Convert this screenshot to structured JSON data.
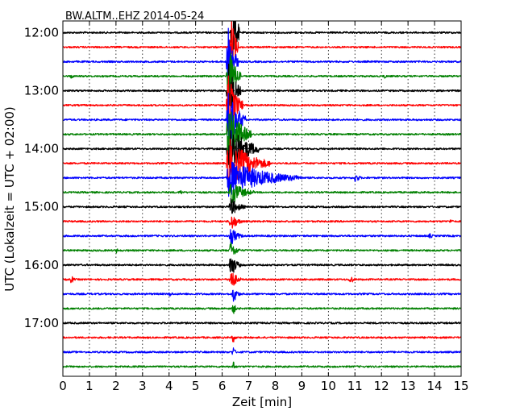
{
  "chart_data": {
    "type": "line",
    "title": "BW.ALTM..EHZ 2014-05-24",
    "xlabel": "Zeit  [min]",
    "ylabel": "UTC (Lokalzeit = UTC + 02:00)",
    "xlim": [
      0,
      15
    ],
    "x_ticks": [
      "0",
      "1",
      "2",
      "3",
      "4",
      "5",
      "6",
      "7",
      "8",
      "9",
      "10",
      "11",
      "12",
      "13",
      "14",
      "15"
    ],
    "y_ticks": [
      {
        "label": "12:00",
        "trace": 0
      },
      {
        "label": "13:00",
        "trace": 4
      },
      {
        "label": "14:00",
        "trace": 8
      },
      {
        "label": "15:00",
        "trace": 12
      },
      {
        "label": "16:00",
        "trace": 16
      },
      {
        "label": "17:00",
        "trace": 20
      }
    ],
    "grid": true,
    "trace_minutes": 15,
    "trace_count": 24,
    "trace_colors": [
      "#000000",
      "#ff0000",
      "#0000ff",
      "#008000"
    ],
    "series": [
      {
        "trace": 0,
        "events": [
          {
            "x": 6.35,
            "amp": 80,
            "width": 0.3
          }
        ]
      },
      {
        "trace": 1,
        "events": [
          {
            "x": 6.3,
            "amp": 60,
            "width": 0.3
          }
        ]
      },
      {
        "trace": 2,
        "events": [
          {
            "x": 6.2,
            "amp": 55,
            "width": 0.4
          }
        ]
      },
      {
        "trace": 3,
        "events": [
          {
            "x": 0.3,
            "amp": 5,
            "width": 0.15
          },
          {
            "x": 6.2,
            "amp": 50,
            "width": 0.5
          },
          {
            "x": 12.1,
            "amp": 5,
            "width": 0.15
          }
        ]
      },
      {
        "trace": 4,
        "events": [
          {
            "x": 6.2,
            "amp": 45,
            "width": 0.5
          }
        ]
      },
      {
        "trace": 5,
        "events": [
          {
            "x": 6.2,
            "amp": 45,
            "width": 0.6
          }
        ]
      },
      {
        "trace": 6,
        "events": [
          {
            "x": 6.2,
            "amp": 45,
            "width": 0.7
          }
        ]
      },
      {
        "trace": 7,
        "events": [
          {
            "x": 6.2,
            "amp": 45,
            "width": 0.9
          }
        ]
      },
      {
        "trace": 8,
        "events": [
          {
            "x": 6.2,
            "amp": 40,
            "width": 1.2
          }
        ]
      },
      {
        "trace": 9,
        "events": [
          {
            "x": 6.2,
            "amp": 35,
            "width": 1.6
          }
        ]
      },
      {
        "trace": 10,
        "events": [
          {
            "x": 6.2,
            "amp": 25,
            "width": 2.8
          },
          {
            "x": 11.0,
            "amp": 8,
            "width": 0.3
          }
        ]
      },
      {
        "trace": 11,
        "events": [
          {
            "x": 4.4,
            "amp": 5,
            "width": 0.2
          },
          {
            "x": 6.3,
            "amp": 18,
            "width": 0.9
          }
        ]
      },
      {
        "trace": 12,
        "events": [
          {
            "x": 6.3,
            "amp": 14,
            "width": 0.6
          }
        ]
      },
      {
        "trace": 13,
        "events": [
          {
            "x": 6.3,
            "amp": 14,
            "width": 0.5
          },
          {
            "x": 14.6,
            "amp": 5,
            "width": 0.15
          }
        ]
      },
      {
        "trace": 14,
        "events": [
          {
            "x": 6.3,
            "amp": 14,
            "width": 0.5
          },
          {
            "x": 13.8,
            "amp": 4,
            "width": 0.3
          }
        ]
      },
      {
        "trace": 15,
        "events": [
          {
            "x": 2.0,
            "amp": 5,
            "width": 0.15
          },
          {
            "x": 6.3,
            "amp": 14,
            "width": 0.4
          }
        ]
      },
      {
        "trace": 16,
        "events": [
          {
            "x": 6.3,
            "amp": 20,
            "width": 0.4
          }
        ]
      },
      {
        "trace": 17,
        "events": [
          {
            "x": 0.3,
            "amp": 7,
            "width": 0.2
          },
          {
            "x": 6.3,
            "amp": 18,
            "width": 0.4
          },
          {
            "x": 10.8,
            "amp": 7,
            "width": 0.3
          }
        ]
      },
      {
        "trace": 18,
        "events": [
          {
            "x": 4.0,
            "amp": 4,
            "width": 0.3
          },
          {
            "x": 6.4,
            "amp": 14,
            "width": 0.3
          }
        ]
      },
      {
        "trace": 19,
        "events": [
          {
            "x": 6.4,
            "amp": 10,
            "width": 0.2
          }
        ]
      },
      {
        "trace": 20,
        "events": [
          {
            "x": 6.4,
            "amp": 10,
            "width": 0.15
          }
        ]
      },
      {
        "trace": 21,
        "events": [
          {
            "x": 6.4,
            "amp": 10,
            "width": 0.15
          }
        ]
      },
      {
        "trace": 22,
        "events": [
          {
            "x": 6.4,
            "amp": 10,
            "width": 0.15
          }
        ]
      },
      {
        "trace": 23,
        "events": [
          {
            "x": 6.4,
            "amp": 10,
            "width": 0.15
          }
        ]
      }
    ]
  }
}
